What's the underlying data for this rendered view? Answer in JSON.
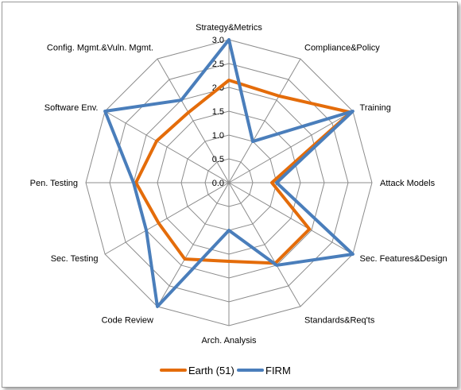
{
  "chart_data": {
    "type": "radar",
    "categories": [
      "Strategy&Metrics",
      "Compliance&Policy",
      "Training",
      "Attack Models",
      "Sec. Features&Design",
      "Standards&Req'ts",
      "Arch. Analysis",
      "Code Review",
      "Sec. Testing",
      "Pen. Testing",
      "Software Env.",
      "Config. Mgmt.&Vuln. Mgmt."
    ],
    "ticks": [
      "0.0",
      "0.5",
      "1.0",
      "1.5",
      "2.0",
      "2.5",
      "3.0"
    ],
    "rlim": [
      0,
      3
    ],
    "grid": true,
    "legend_position": "bottom",
    "series": [
      {
        "name": "Earth (51)",
        "color": "#e46c0a",
        "values": [
          2.15,
          2.1,
          2.95,
          0.9,
          1.95,
          1.95,
          1.65,
          1.85,
          1.7,
          1.95,
          1.75,
          1.7
        ]
      },
      {
        "name": "FIRM",
        "color": "#4a7ebb",
        "values": [
          3.0,
          1.0,
          3.0,
          1.0,
          3.0,
          2.0,
          1.0,
          3.0,
          2.0,
          2.0,
          3.0,
          2.0
        ]
      }
    ]
  }
}
